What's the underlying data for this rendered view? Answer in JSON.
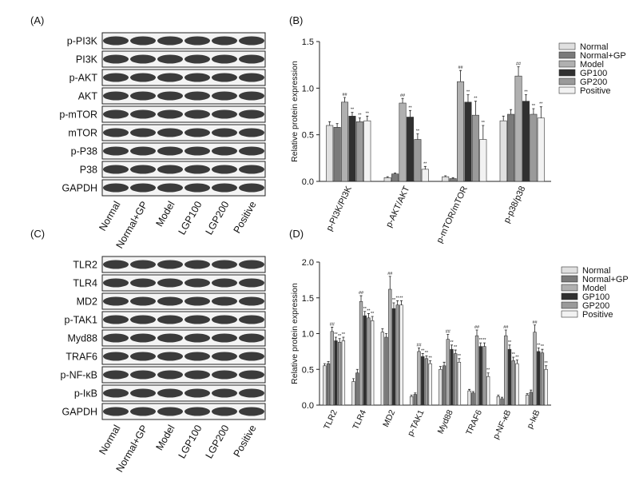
{
  "blots": [
    {
      "panel": "(A)",
      "proteins": [
        "p-PI3K",
        "PI3K",
        "p-AKT",
        "AKT",
        "p-mTOR",
        "mTOR",
        "p-P38",
        "P38",
        "GAPDH"
      ],
      "lanes": [
        "Normal",
        "Normal+GP",
        "Model",
        "LGP100",
        "LGP200",
        "Positive"
      ]
    },
    {
      "panel": "(C)",
      "proteins": [
        "TLR2",
        "TLR4",
        "MD2",
        "p-TAK1",
        "Myd88",
        "TRAF6",
        "p-NF-κB",
        "p-IκB",
        "GAPDH"
      ],
      "lanes": [
        "Normal",
        "Normal+GP",
        "Model",
        "LGP100",
        "LGP200",
        "Positive"
      ]
    }
  ],
  "chart_data": [
    {
      "type": "bar",
      "panel": "(B)",
      "y_label": "Relative protein expression",
      "categories": [
        "p-PI3K/PI3K",
        "p-AKT/AKT",
        "p-mTOR/mTOR",
        "p-p38/p38"
      ],
      "ylim": [
        0,
        1.5
      ],
      "yticks": [
        {
          "value": 0,
          "label": "0.0"
        },
        0.5,
        {
          "value": 1,
          "label": "1.0"
        },
        1.5
      ],
      "legend": "right",
      "series": [
        {
          "name": "Normal",
          "color": "#e0e0e0",
          "values": [
            0.6,
            0.04,
            0.05,
            0.65
          ],
          "errors": [
            0.04,
            0.01,
            0.01,
            0.05
          ]
        },
        {
          "name": "Normal+GP",
          "color": "#7a7a7a",
          "values": [
            0.58,
            0.08,
            0.03,
            0.72
          ],
          "errors": [
            0.04,
            0.01,
            0.01,
            0.05
          ]
        },
        {
          "name": "Model",
          "color": "#b0b0b0",
          "values": [
            0.85,
            0.84,
            1.07,
            1.13
          ],
          "errors": [
            0.05,
            0.05,
            0.12,
            0.1
          ],
          "sig": "##"
        },
        {
          "name": "GP100",
          "color": "#303030",
          "values": [
            0.7,
            0.69,
            0.85,
            0.86
          ],
          "errors": [
            0.04,
            0.07,
            0.08,
            0.07
          ],
          "sig": "**"
        },
        {
          "name": "GP200",
          "color": "#9a9a9a",
          "values": [
            0.64,
            0.45,
            0.71,
            0.72
          ],
          "errors": [
            0.04,
            0.06,
            0.15,
            0.06
          ],
          "sig": "**"
        },
        {
          "name": "Positive",
          "color": "#f2f2f2",
          "values": [
            0.65,
            0.13,
            0.45,
            0.68
          ],
          "errors": [
            0.05,
            0.03,
            0.15,
            0.12
          ],
          "sig": "**"
        }
      ]
    },
    {
      "type": "bar",
      "panel": "(D)",
      "y_label": "Relative protein expression",
      "categories": [
        "TLR2",
        "TLR4",
        "MD2",
        "p-TAK1",
        "Myd88",
        "TRAF6",
        "p-NF-κB",
        "p-IκB"
      ],
      "ylim": [
        0,
        2
      ],
      "yticks": [
        {
          "value": 0,
          "label": "0.0"
        },
        0.5,
        {
          "value": 1,
          "label": "1.0"
        },
        1.5,
        {
          "value": 2,
          "label": "2.0"
        }
      ],
      "legend": "right",
      "series": [
        {
          "name": "Normal",
          "color": "#e0e0e0",
          "values": [
            0.55,
            0.33,
            1.02,
            0.12,
            0.5,
            0.2,
            0.12,
            0.14
          ],
          "errors": [
            0.03,
            0.04,
            0.05,
            0.02,
            0.04,
            0.02,
            0.02,
            0.02
          ]
        },
        {
          "name": "Normal+GP",
          "color": "#7a7a7a",
          "values": [
            0.58,
            0.45,
            0.95,
            0.15,
            0.55,
            0.17,
            0.09,
            0.18
          ],
          "errors": [
            0.03,
            0.05,
            0.05,
            0.02,
            0.05,
            0.02,
            0.02,
            0.03
          ]
        },
        {
          "name": "Model",
          "color": "#b0b0b0",
          "values": [
            1.03,
            1.45,
            1.62,
            0.75,
            0.92,
            0.97,
            0.97,
            1.02
          ],
          "errors": [
            0.06,
            0.08,
            0.18,
            0.05,
            0.07,
            0.08,
            0.08,
            0.1
          ],
          "sig": "##"
        },
        {
          "name": "GP100",
          "color": "#303030",
          "values": [
            0.9,
            1.25,
            1.35,
            0.68,
            0.78,
            0.82,
            0.78,
            0.75
          ],
          "errors": [
            0.05,
            0.06,
            0.08,
            0.04,
            0.06,
            0.05,
            0.06,
            0.05
          ],
          "sig": "**"
        },
        {
          "name": "GP200",
          "color": "#9a9a9a",
          "values": [
            0.88,
            1.22,
            1.4,
            0.65,
            0.72,
            0.82,
            0.62,
            0.73
          ],
          "errors": [
            0.05,
            0.06,
            0.06,
            0.04,
            0.05,
            0.05,
            0.05,
            0.05
          ],
          "sig": "**"
        },
        {
          "name": "Positive",
          "color": "#f2f2f2",
          "values": [
            0.9,
            1.18,
            1.4,
            0.58,
            0.6,
            0.4,
            0.58,
            0.5
          ],
          "errors": [
            0.05,
            0.06,
            0.06,
            0.04,
            0.05,
            0.05,
            0.05,
            0.05
          ],
          "sig": "**"
        }
      ]
    }
  ]
}
